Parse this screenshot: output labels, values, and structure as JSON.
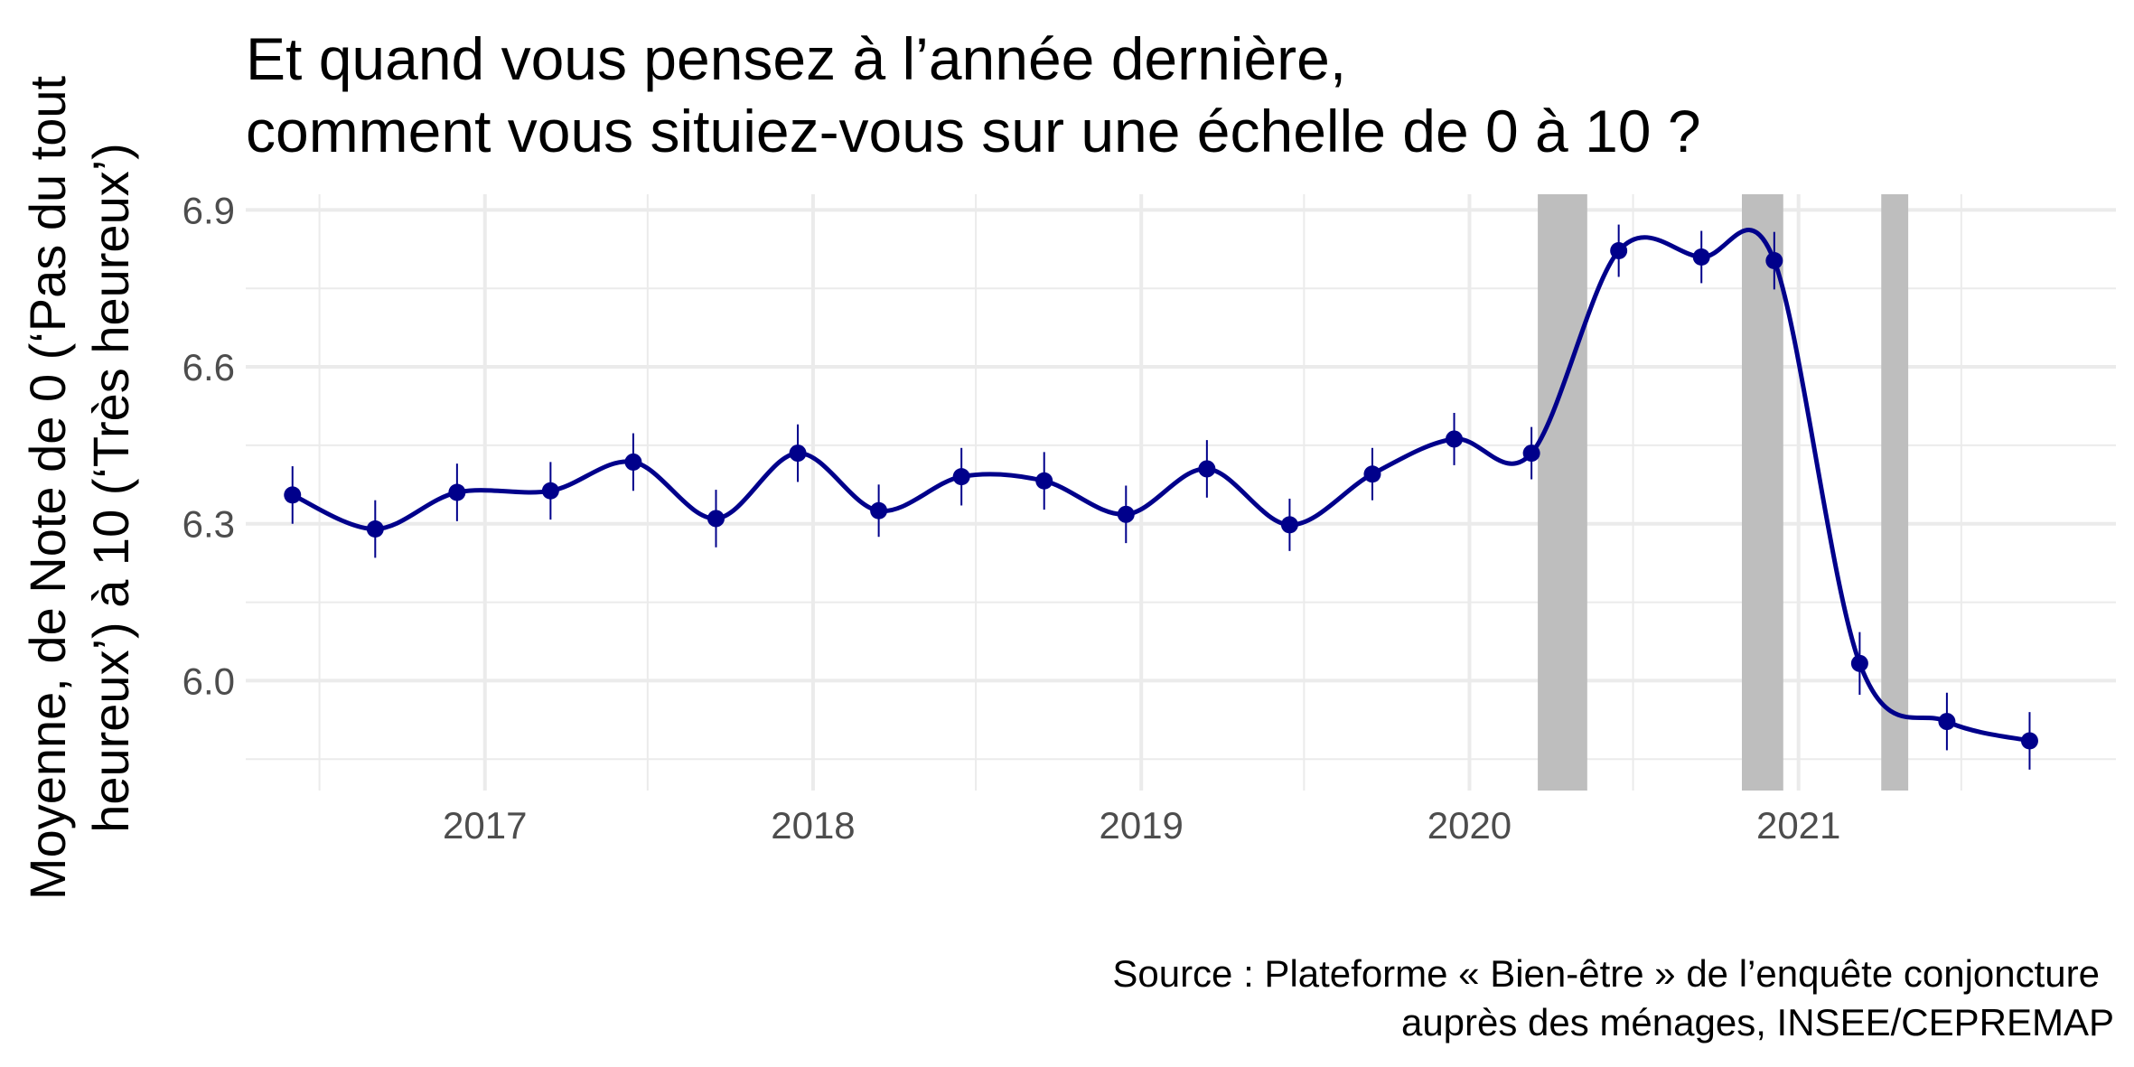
{
  "chart_data": {
    "type": "line",
    "title_lines": [
      "Et quand vous pensez à l’année dernière,",
      "comment vous situiez-vous sur une échelle de 0 à 10 ?"
    ],
    "ylabel_lines": [
      "Moyenne, de Note de 0 (‘Pas du tout",
      "heureux’) à 10 (‘Très heureux’)"
    ],
    "xlabel": "",
    "caption_lines": [
      "Source : Plateforme « Bien-être » de l’enquête conjoncture",
      "auprès des ménages, INSEE/CEPREMAP"
    ],
    "x_ticks": [
      "2017",
      "2018",
      "2019",
      "2020",
      "2021"
    ],
    "y_ticks": [
      "6.0",
      "6.3",
      "6.6",
      "6.9"
    ],
    "xlim": [
      "2016-04-10",
      "2021-12-20"
    ],
    "ylim": [
      5.79,
      6.93
    ],
    "grid": true,
    "line_color": "#00008b",
    "shade_color": "#bebebe",
    "shaded_periods": [
      {
        "start": "2020-03-17",
        "end": "2020-05-11"
      },
      {
        "start": "2020-10-30",
        "end": "2020-12-15"
      },
      {
        "start": "2021-04-03",
        "end": "2021-05-03"
      }
    ],
    "series": [
      {
        "points": [
          {
            "x": "2016-06-01",
            "y": 6.355,
            "err": 0.055
          },
          {
            "x": "2016-09-01",
            "y": 6.29,
            "err": 0.055
          },
          {
            "x": "2016-12-01",
            "y": 6.36,
            "err": 0.055
          },
          {
            "x": "2017-03-15",
            "y": 6.363,
            "err": 0.055
          },
          {
            "x": "2017-06-15",
            "y": 6.418,
            "err": 0.055
          },
          {
            "x": "2017-09-15",
            "y": 6.31,
            "err": 0.055
          },
          {
            "x": "2017-12-15",
            "y": 6.435,
            "err": 0.055
          },
          {
            "x": "2018-03-15",
            "y": 6.325,
            "err": 0.05
          },
          {
            "x": "2018-06-15",
            "y": 6.39,
            "err": 0.055
          },
          {
            "x": "2018-09-15",
            "y": 6.382,
            "err": 0.055
          },
          {
            "x": "2018-12-15",
            "y": 6.318,
            "err": 0.055
          },
          {
            "x": "2019-03-15",
            "y": 6.405,
            "err": 0.055
          },
          {
            "x": "2019-06-15",
            "y": 6.298,
            "err": 0.05
          },
          {
            "x": "2019-09-15",
            "y": 6.395,
            "err": 0.05
          },
          {
            "x": "2019-12-15",
            "y": 6.462,
            "err": 0.05
          },
          {
            "x": "2020-03-10",
            "y": 6.435,
            "err": 0.05
          },
          {
            "x": "2020-06-15",
            "y": 6.822,
            "err": 0.05
          },
          {
            "x": "2020-09-15",
            "y": 6.81,
            "err": 0.05
          },
          {
            "x": "2020-12-05",
            "y": 6.803,
            "err": 0.055
          },
          {
            "x": "2021-03-10",
            "y": 6.033,
            "err": 0.06
          },
          {
            "x": "2021-06-15",
            "y": 5.922,
            "err": 0.055
          },
          {
            "x": "2021-09-15",
            "y": 5.885,
            "err": 0.055
          }
        ]
      }
    ]
  }
}
